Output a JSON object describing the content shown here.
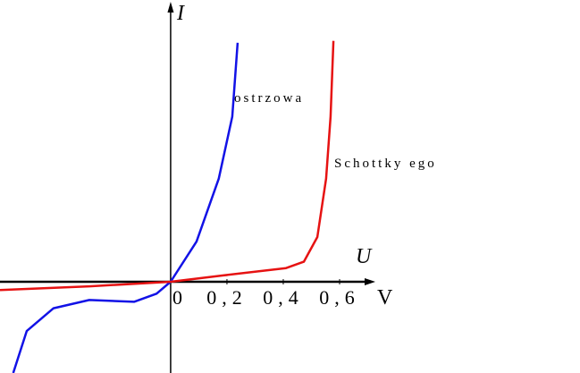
{
  "chart_data": {
    "type": "line",
    "x_axis_unit": "V",
    "x_axis_label": "U",
    "y_axis_label": "I",
    "annotations": [
      "ostrzowa",
      "Schottky ego"
    ],
    "xlim": [
      -0.606,
      0.727
    ],
    "ylim": [
      -1,
      3
    ],
    "xticks": [
      0,
      {
        "value": 0.2,
        "label": "0,2"
      },
      {
        "value": 0.4,
        "label": "0,4"
      },
      {
        "value": 0.6,
        "label": "0,6"
      }
    ],
    "series": [
      {
        "name": "ostrzowa",
        "color": "#1212e6",
        "x": [
          -0.559,
          -0.511,
          -0.416,
          -0.289,
          -0.13,
          -0.05,
          0,
          0.092,
          0.171,
          0.219,
          0.238
        ],
        "values": [
          -1,
          -0.54,
          -0.29,
          -0.2,
          -0.22,
          -0.13,
          0,
          0.44,
          1.13,
          1.81,
          2.62
        ]
      },
      {
        "name": "Schottky ego",
        "color": "#e61212",
        "x": [
          -0.606,
          -0.289,
          0,
          0.187,
          0.41,
          0.473,
          0.521,
          0.552,
          0.568,
          0.578
        ],
        "values": [
          -0.09,
          -0.05,
          0,
          0.07,
          0.15,
          0.22,
          0.49,
          1.13,
          1.81,
          2.64
        ]
      }
    ]
  }
}
